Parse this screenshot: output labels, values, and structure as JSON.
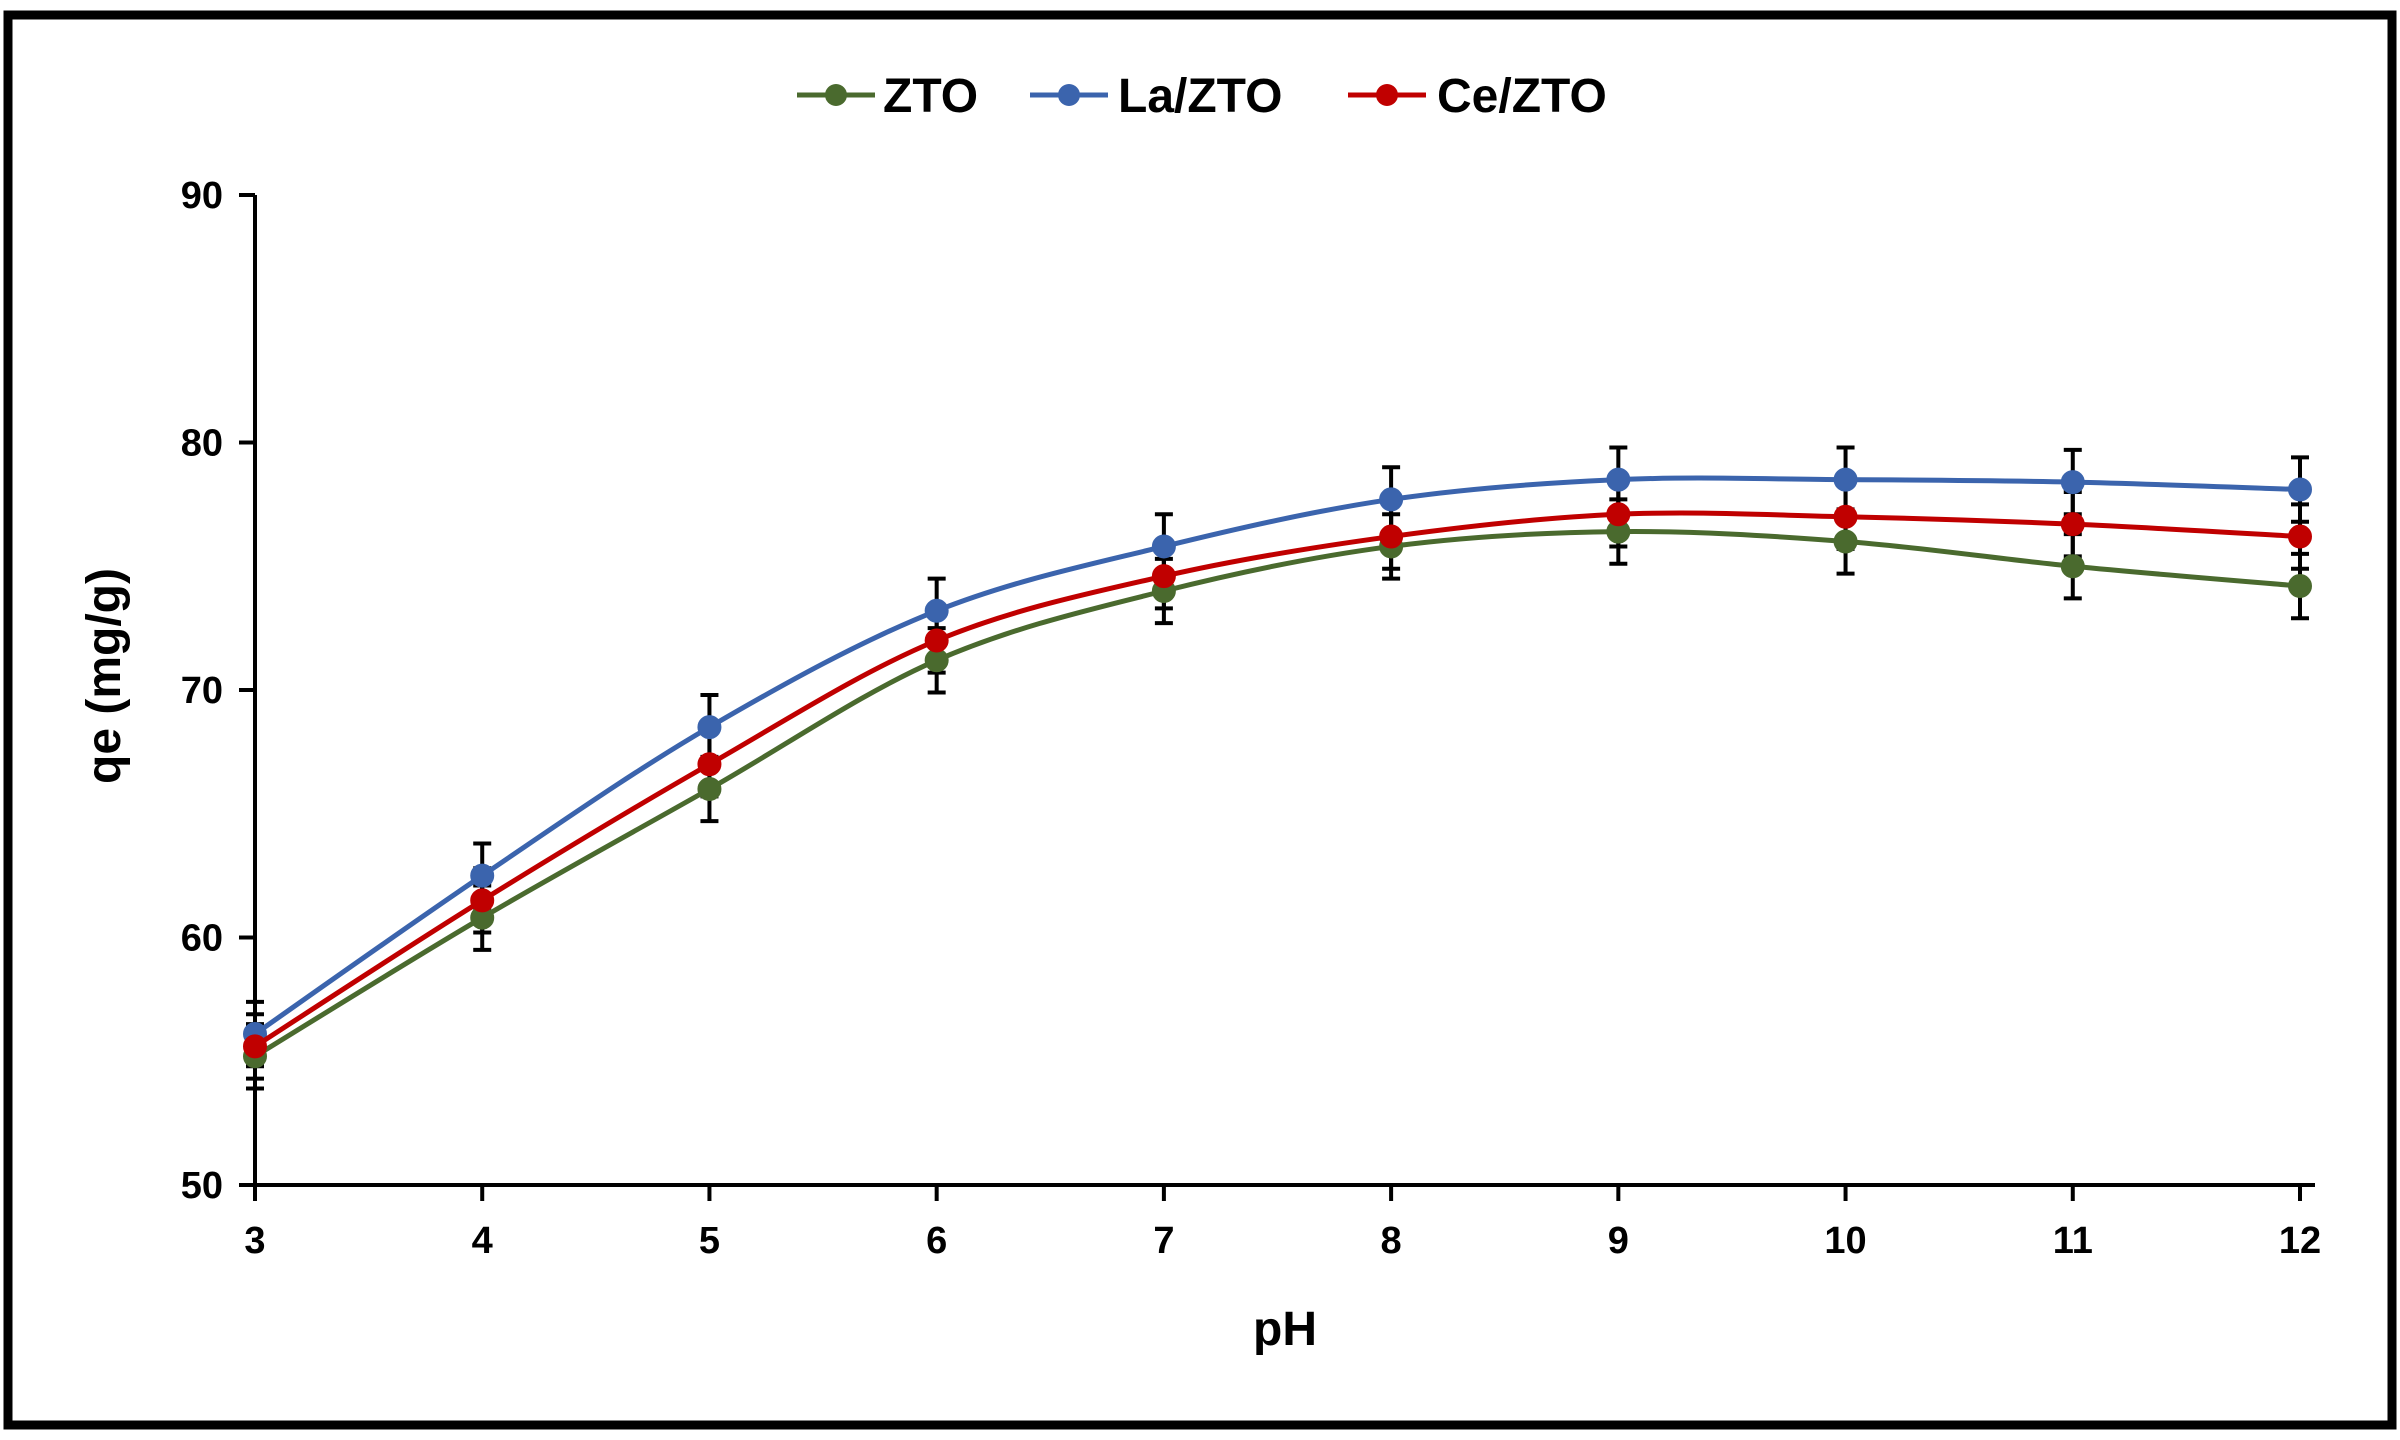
{
  "chart_data": {
    "type": "line",
    "title": "",
    "xlabel": "pH",
    "ylabel": "qe (mg/g)",
    "x": [
      3,
      4,
      5,
      6,
      7,
      8,
      9,
      10,
      11,
      12
    ],
    "xticks": [
      "3",
      "4",
      "5",
      "6",
      "7",
      "8",
      "9",
      "10",
      "11",
      "12"
    ],
    "ylim": [
      50,
      90
    ],
    "yticks": [
      "50",
      "60",
      "70",
      "80",
      "90"
    ],
    "legend_position": "top-center",
    "error_bar": 1.3,
    "series": [
      {
        "name": "ZTO",
        "color": "#4a6a2e",
        "values": [
          55.2,
          60.8,
          66.0,
          71.2,
          74.0,
          75.8,
          76.4,
          76.0,
          75.0,
          74.2
        ]
      },
      {
        "name": "La/ZTO",
        "color": "#3b64ad",
        "values": [
          56.1,
          62.5,
          68.5,
          73.2,
          75.8,
          77.7,
          78.5,
          78.5,
          78.4,
          78.1
        ]
      },
      {
        "name": "Ce/ZTO",
        "color": "#c00000",
        "values": [
          55.6,
          61.5,
          67.0,
          72.0,
          74.6,
          76.2,
          77.1,
          77.0,
          76.7,
          76.2
        ]
      }
    ]
  }
}
